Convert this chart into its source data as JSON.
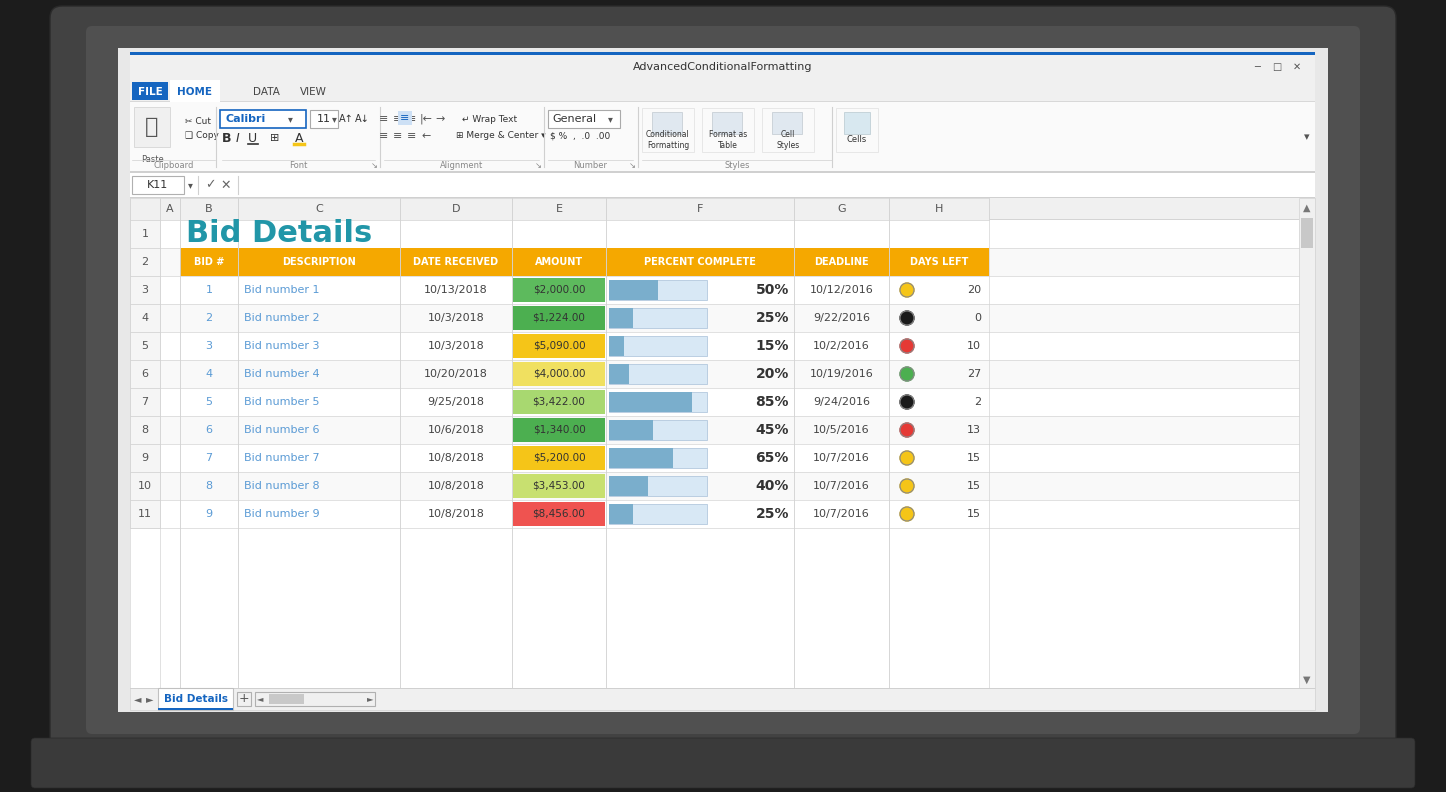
{
  "title_bar_text": "AdvancedConditionalFormatting",
  "formula_bar_cell": "K11",
  "col_headers": [
    "A",
    "B",
    "C",
    "D",
    "E",
    "F",
    "G",
    "H"
  ],
  "row_headers": [
    "1",
    "2",
    "3",
    "4",
    "5",
    "6",
    "7",
    "8",
    "9",
    "10",
    "11"
  ],
  "header_bg": "#f5a800",
  "header_text_color": "#ffffff",
  "bid_title": "Bid Details",
  "bid_title_color": "#2196a8",
  "rows": [
    {
      "bid": "1",
      "desc": "Bid number 1",
      "date": "10/13/2018",
      "amount": "$2,000.00",
      "pct": 50,
      "deadline": "10/12/2016",
      "dot_color": "#f5c518",
      "days": "20",
      "amount_bg": "#5dba5d"
    },
    {
      "bid": "2",
      "desc": "Bid number 2",
      "date": "10/3/2018",
      "amount": "$1,224.00",
      "pct": 25,
      "deadline": "9/22/2016",
      "dot_color": "#1a1a1a",
      "days": "0",
      "amount_bg": "#4caf50"
    },
    {
      "bid": "3",
      "desc": "Bid number 3",
      "date": "10/3/2018",
      "amount": "$5,090.00",
      "pct": 15,
      "deadline": "10/2/2016",
      "dot_color": "#e53935",
      "days": "10",
      "amount_bg": "#f5c518"
    },
    {
      "bid": "4",
      "desc": "Bid number 4",
      "date": "10/20/2018",
      "amount": "$4,000.00",
      "pct": 20,
      "deadline": "10/19/2016",
      "dot_color": "#4caf50",
      "days": "27",
      "amount_bg": "#f0e060"
    },
    {
      "bid": "5",
      "desc": "Bid number 5",
      "date": "9/25/2018",
      "amount": "$3,422.00",
      "pct": 85,
      "deadline": "9/24/2016",
      "dot_color": "#1a1a1a",
      "days": "2",
      "amount_bg": "#a8d870"
    },
    {
      "bid": "6",
      "desc": "Bid number 6",
      "date": "10/6/2018",
      "amount": "$1,340.00",
      "pct": 45,
      "deadline": "10/5/2016",
      "dot_color": "#e53935",
      "days": "13",
      "amount_bg": "#4caf50"
    },
    {
      "bid": "7",
      "desc": "Bid number 7",
      "date": "10/8/2018",
      "amount": "$5,200.00",
      "pct": 65,
      "deadline": "10/7/2016",
      "dot_color": "#f5c518",
      "days": "15",
      "amount_bg": "#f5c518"
    },
    {
      "bid": "8",
      "desc": "Bid number 8",
      "date": "10/8/2018",
      "amount": "$3,453.00",
      "pct": 40,
      "deadline": "10/7/2016",
      "dot_color": "#f5c518",
      "days": "15",
      "amount_bg": "#c8e070"
    },
    {
      "bid": "9",
      "desc": "Bid number 9",
      "date": "10/8/2018",
      "amount": "$8,456.00",
      "pct": 25,
      "deadline": "10/7/2016",
      "dot_color": "#f5c518",
      "days": "15",
      "amount_bg": "#ef5350"
    }
  ],
  "sheet_tab": "Bid Details",
  "laptop_outer": "#424242",
  "laptop_bezel": "#505050",
  "laptop_base": "#4a4a4a",
  "screen_bg": "#e8e8e8",
  "window_bg": "#ffffff",
  "ribbon_bg": "#f5f5f5",
  "toolbar_bg": "#fafafa",
  "file_btn_color": "#1565c0",
  "home_tab_color": "#1565c0",
  "col_header_bg": "#f0f0f0",
  "row_header_bg": "#f5f5f5",
  "grid_line": "#d4d4d4",
  "bar_fill": "#7aaecc",
  "bar_bg": "#d8e8f5",
  "scrollbar_bg": "#f0f0f0",
  "scrollbar_thumb": "#c8c8c8"
}
